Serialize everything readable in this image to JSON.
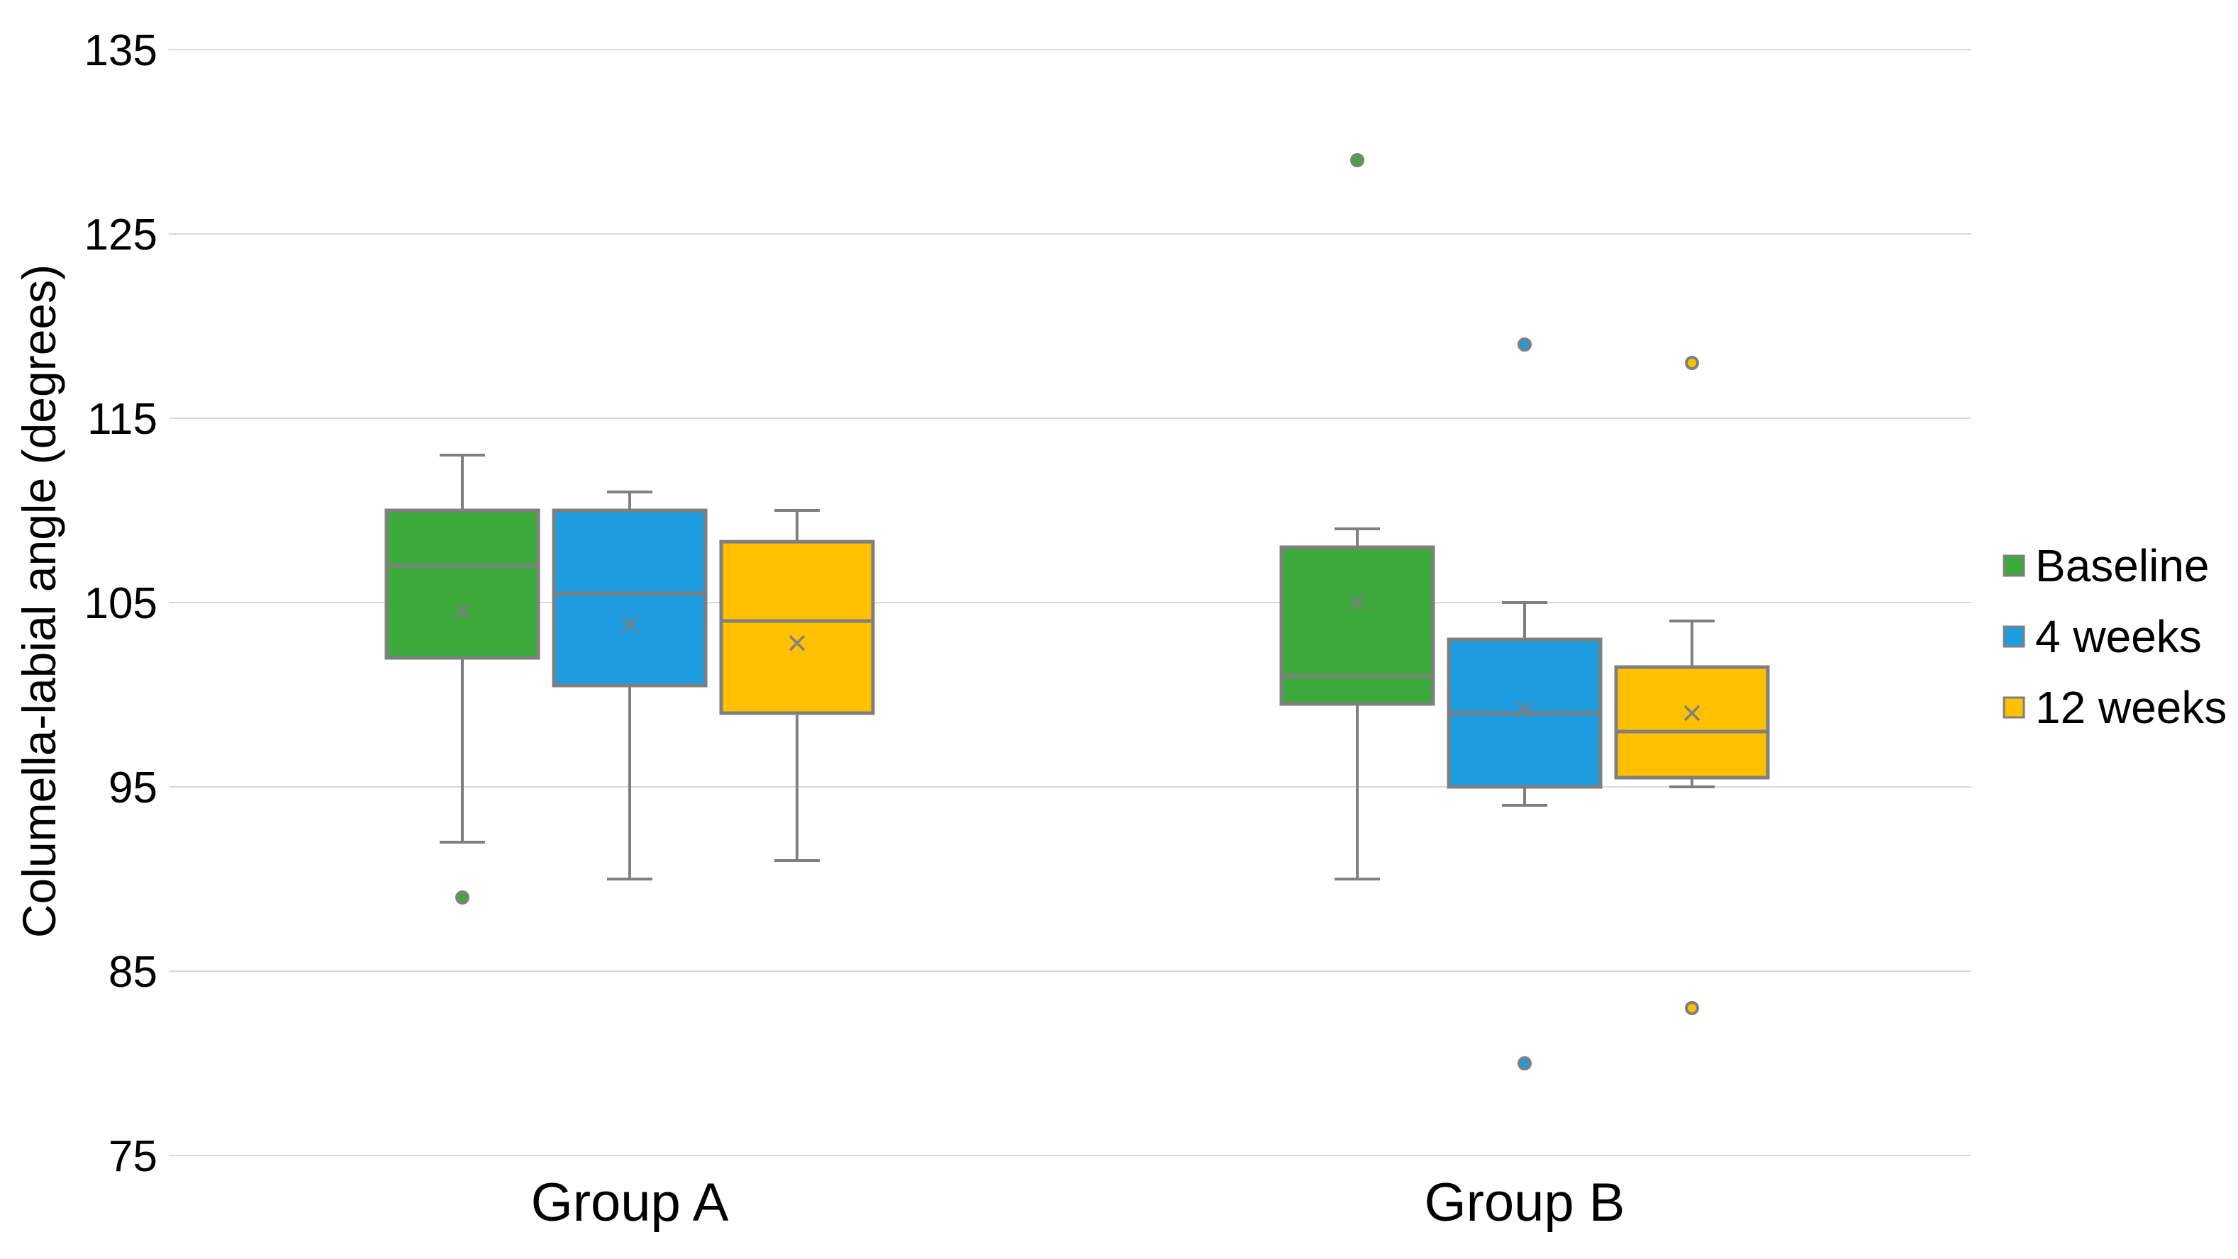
{
  "chart_data": {
    "type": "boxplot",
    "title": "",
    "xlabel": "",
    "ylabel": "Columella-labial angle (degrees)",
    "ylim": [
      75,
      135
    ],
    "yticks": [
      75,
      85,
      95,
      105,
      115,
      125,
      135
    ],
    "ytick_labels": [
      "75",
      "85",
      "95",
      "105",
      "115",
      "125",
      "135"
    ],
    "grid": true,
    "legend_position": "right",
    "categories": [
      "Group A",
      "Group B"
    ],
    "series": [
      {
        "name": "Baseline",
        "color": "#3cab3c",
        "boxes": [
          {
            "whisker_low": 92,
            "q1": 102,
            "median": 107,
            "q3": 110,
            "whisker_high": 113,
            "mean": 104.5,
            "outliers": [
              89
            ]
          },
          {
            "whisker_low": 90,
            "q1": 99.5,
            "median": 101,
            "q3": 108,
            "whisker_high": 109,
            "mean": 105,
            "outliers": [
              129
            ]
          }
        ]
      },
      {
        "name": "4 weeks",
        "color": "#1d9ce0",
        "boxes": [
          {
            "whisker_low": 90,
            "q1": 100.5,
            "median": 105.5,
            "q3": 110,
            "whisker_high": 111,
            "mean": 103.8,
            "outliers": []
          },
          {
            "whisker_low": 94,
            "q1": 95,
            "median": 99,
            "q3": 103,
            "whisker_high": 105,
            "mean": 99.2,
            "outliers": [
              119,
              80
            ]
          }
        ]
      },
      {
        "name": "12 weeks",
        "color": "#ffc000",
        "boxes": [
          {
            "whisker_low": 91,
            "q1": 99,
            "median": 104,
            "q3": 108.3,
            "whisker_high": 110,
            "mean": 102.8,
            "outliers": []
          },
          {
            "whisker_low": 95,
            "q1": 95.5,
            "median": 98,
            "q3": 101.5,
            "whisker_high": 104,
            "mean": 99,
            "outliers": [
              118,
              83
            ]
          }
        ]
      }
    ]
  }
}
